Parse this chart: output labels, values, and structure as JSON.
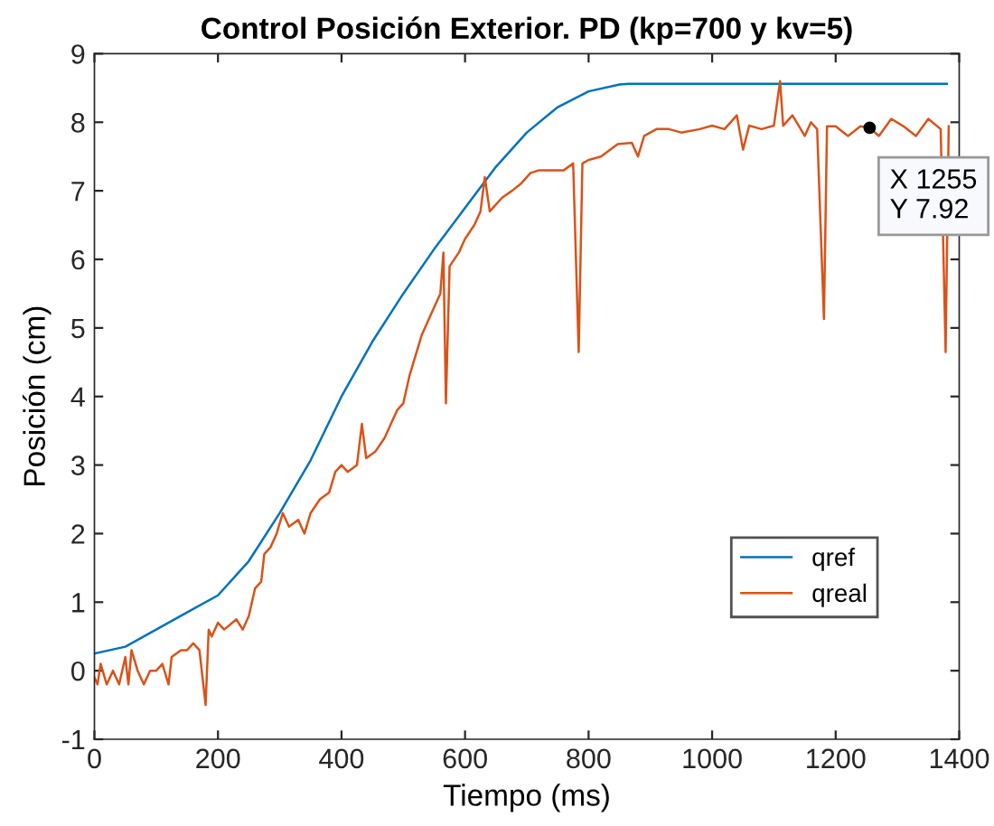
{
  "chart_data": {
    "type": "line",
    "title": "Control Posición Exterior. PD (kp=700 y kv=5)",
    "xlabel": "Tiempo (ms)",
    "ylabel": "Posición (cm)",
    "xlim": [
      0,
      1400
    ],
    "xticks": [
      0,
      200,
      400,
      600,
      800,
      1000,
      1200,
      1400
    ],
    "ylim": [
      -1,
      9
    ],
    "yticks": [
      -1,
      0,
      1,
      2,
      3,
      4,
      5,
      6,
      7,
      8,
      9
    ],
    "grid": false,
    "legend": "bottom right",
    "marker": "none",
    "line_style": "solid",
    "annotations": [
      {
        "text": "X 1255\nY 7.92",
        "x": 1255,
        "y": 7.92
      }
    ],
    "series": [
      {
        "name": "qref",
        "color": "#0072bd",
        "x": [
          0,
          50,
          100,
          150,
          200,
          250,
          300,
          350,
          400,
          450,
          500,
          550,
          600,
          650,
          700,
          750,
          800,
          850,
          865,
          1380
        ],
        "values": [
          0.25,
          0.35,
          0.6,
          0.85,
          1.1,
          1.6,
          2.3,
          3.07,
          4.0,
          4.8,
          5.5,
          6.15,
          6.75,
          7.35,
          7.85,
          8.22,
          8.45,
          8.55,
          8.56,
          8.56
        ]
      },
      {
        "name": "qreal",
        "color": "#d95319",
        "x": [
          0,
          5,
          10,
          20,
          30,
          40,
          50,
          55,
          60,
          70,
          80,
          90,
          100,
          110,
          120,
          125,
          140,
          150,
          160,
          170,
          180,
          185,
          190,
          200,
          210,
          230,
          240,
          250,
          260,
          270,
          275,
          285,
          295,
          305,
          315,
          330,
          340,
          350,
          365,
          380,
          390,
          400,
          410,
          425,
          433,
          440,
          455,
          470,
          480,
          490,
          500,
          510,
          520,
          530,
          540,
          550,
          560,
          565,
          569,
          575,
          590,
          600,
          615,
          625,
          632,
          640,
          660,
          676,
          690,
          706,
          720,
          740,
          760,
          775,
          784,
          790,
          800,
          820,
          847,
          870,
          880,
          890,
          910,
          930,
          950,
          980,
          1000,
          1020,
          1040,
          1050,
          1060,
          1080,
          1100,
          1110,
          1115,
          1130,
          1150,
          1160,
          1170,
          1181,
          1186,
          1200,
          1220,
          1240,
          1255,
          1270,
          1290,
          1310,
          1330,
          1350,
          1370,
          1378,
          1383
        ],
        "values": [
          -0.1,
          -0.2,
          0.1,
          -0.2,
          0.0,
          -0.2,
          0.2,
          -0.2,
          0.3,
          0.0,
          -0.2,
          0.0,
          0.0,
          0.1,
          -0.2,
          0.2,
          0.3,
          0.3,
          0.4,
          0.3,
          -0.5,
          0.6,
          0.5,
          0.7,
          0.6,
          0.75,
          0.6,
          0.8,
          1.2,
          1.3,
          1.7,
          1.8,
          2.0,
          2.3,
          2.1,
          2.2,
          2.0,
          2.3,
          2.5,
          2.6,
          2.9,
          3.0,
          2.9,
          3.0,
          3.6,
          3.1,
          3.2,
          3.4,
          3.6,
          3.8,
          3.9,
          4.3,
          4.6,
          4.9,
          5.1,
          5.3,
          5.5,
          6.1,
          3.9,
          5.9,
          6.1,
          6.3,
          6.5,
          6.7,
          7.2,
          6.7,
          6.9,
          7.0,
          7.1,
          7.26,
          7.3,
          7.3,
          7.3,
          7.4,
          4.65,
          7.4,
          7.45,
          7.5,
          7.68,
          7.7,
          7.5,
          7.8,
          7.9,
          7.9,
          7.85,
          7.9,
          7.95,
          7.9,
          8.1,
          7.6,
          7.95,
          7.9,
          7.95,
          8.6,
          7.95,
          8.1,
          7.8,
          8.0,
          7.9,
          5.13,
          7.94,
          7.94,
          7.8,
          7.94,
          7.92,
          7.8,
          8.05,
          7.94,
          7.8,
          8.05,
          7.9,
          4.65,
          7.94
        ]
      }
    ]
  }
}
